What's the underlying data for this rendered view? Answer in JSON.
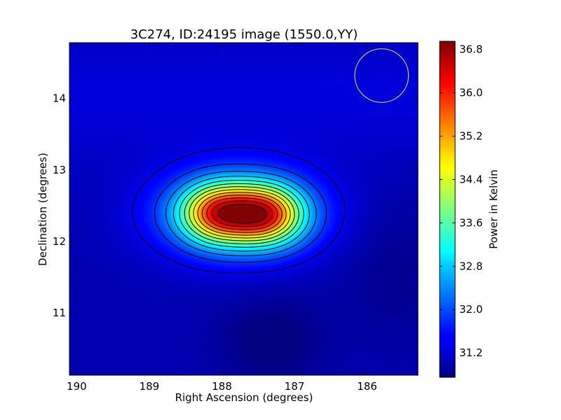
{
  "chart_data": {
    "type": "heatmap",
    "title": "3C274, ID:24195 image (1550.0,YY)",
    "xlabel": "Right Ascension (degrees)",
    "ylabel": "Declination (degrees)",
    "colorbar_label": "Power in Kelvin",
    "x_range": [
      190.1,
      185.3
    ],
    "y_range": [
      10.13,
      14.78
    ],
    "x_ticks": [
      190,
      189,
      188,
      187,
      186
    ],
    "y_ticks": [
      11,
      12,
      13,
      14
    ],
    "x_tick_labels": [
      "190",
      "189",
      "188",
      "187",
      "186"
    ],
    "y_tick_labels": [
      "11",
      "12",
      "13",
      "14"
    ],
    "color_range": [
      30.75,
      36.95
    ],
    "colorbar_ticks": [
      31.2,
      32.0,
      32.8,
      33.6,
      34.4,
      35.2,
      36.0,
      36.8
    ],
    "colorbar_tick_labels": [
      "31.2",
      "32.0",
      "32.8",
      "33.6",
      "34.4",
      "35.2",
      "36.0",
      "36.8"
    ],
    "colormap": "jet",
    "source_peaks": [
      {
        "ra": 187.4,
        "dec": 12.38,
        "power": 36.9
      },
      {
        "ra": 188.05,
        "dec": 12.4,
        "power": 36.6
      }
    ],
    "beam_circle": {
      "ra": 185.8,
      "dec": 14.32,
      "radius_deg": 0.37,
      "color": "#cccc55"
    },
    "contour_color": "#000000"
  }
}
